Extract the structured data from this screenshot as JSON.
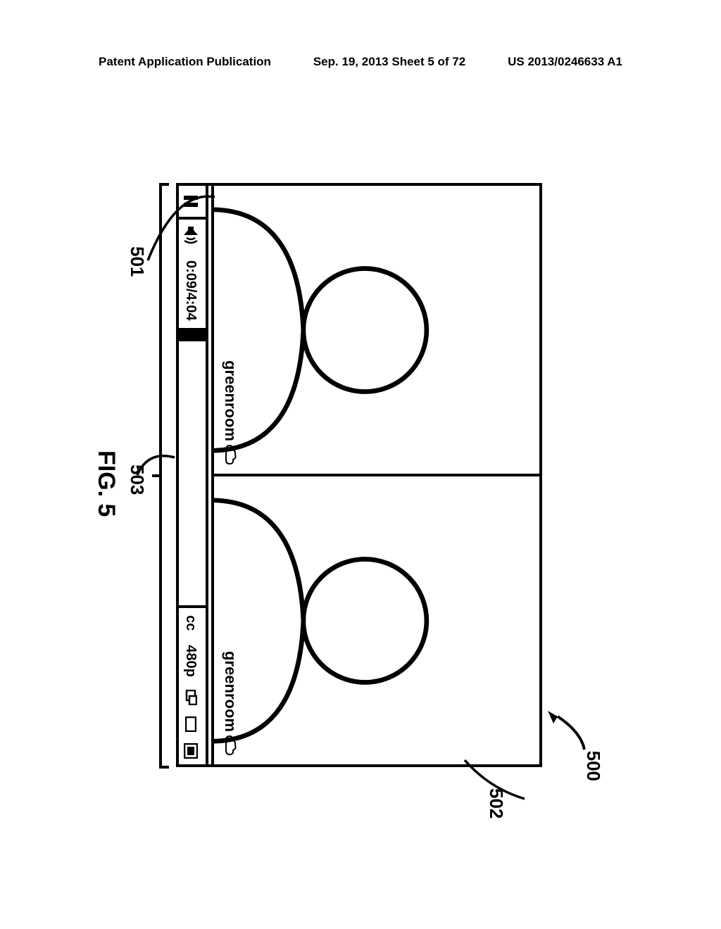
{
  "header": {
    "left": "Patent Application Publication",
    "center": "Sep. 19, 2013  Sheet 5 of 72",
    "right": "US 2013/0246633 A1"
  },
  "figure": {
    "caption": "FIG. 5",
    "refs": {
      "r500": "500",
      "r501": "501",
      "r502": "502",
      "r503": "503"
    }
  },
  "player": {
    "tile_watermark": "greenroom",
    "time_elapsed": "0:09",
    "time_total": "4:04",
    "progress_pct": 4,
    "cc_label": "cc",
    "quality_label": "480p"
  },
  "style": {
    "stroke": "#000000",
    "bg": "#ffffff",
    "border_w": 4,
    "font_bold": 700
  }
}
